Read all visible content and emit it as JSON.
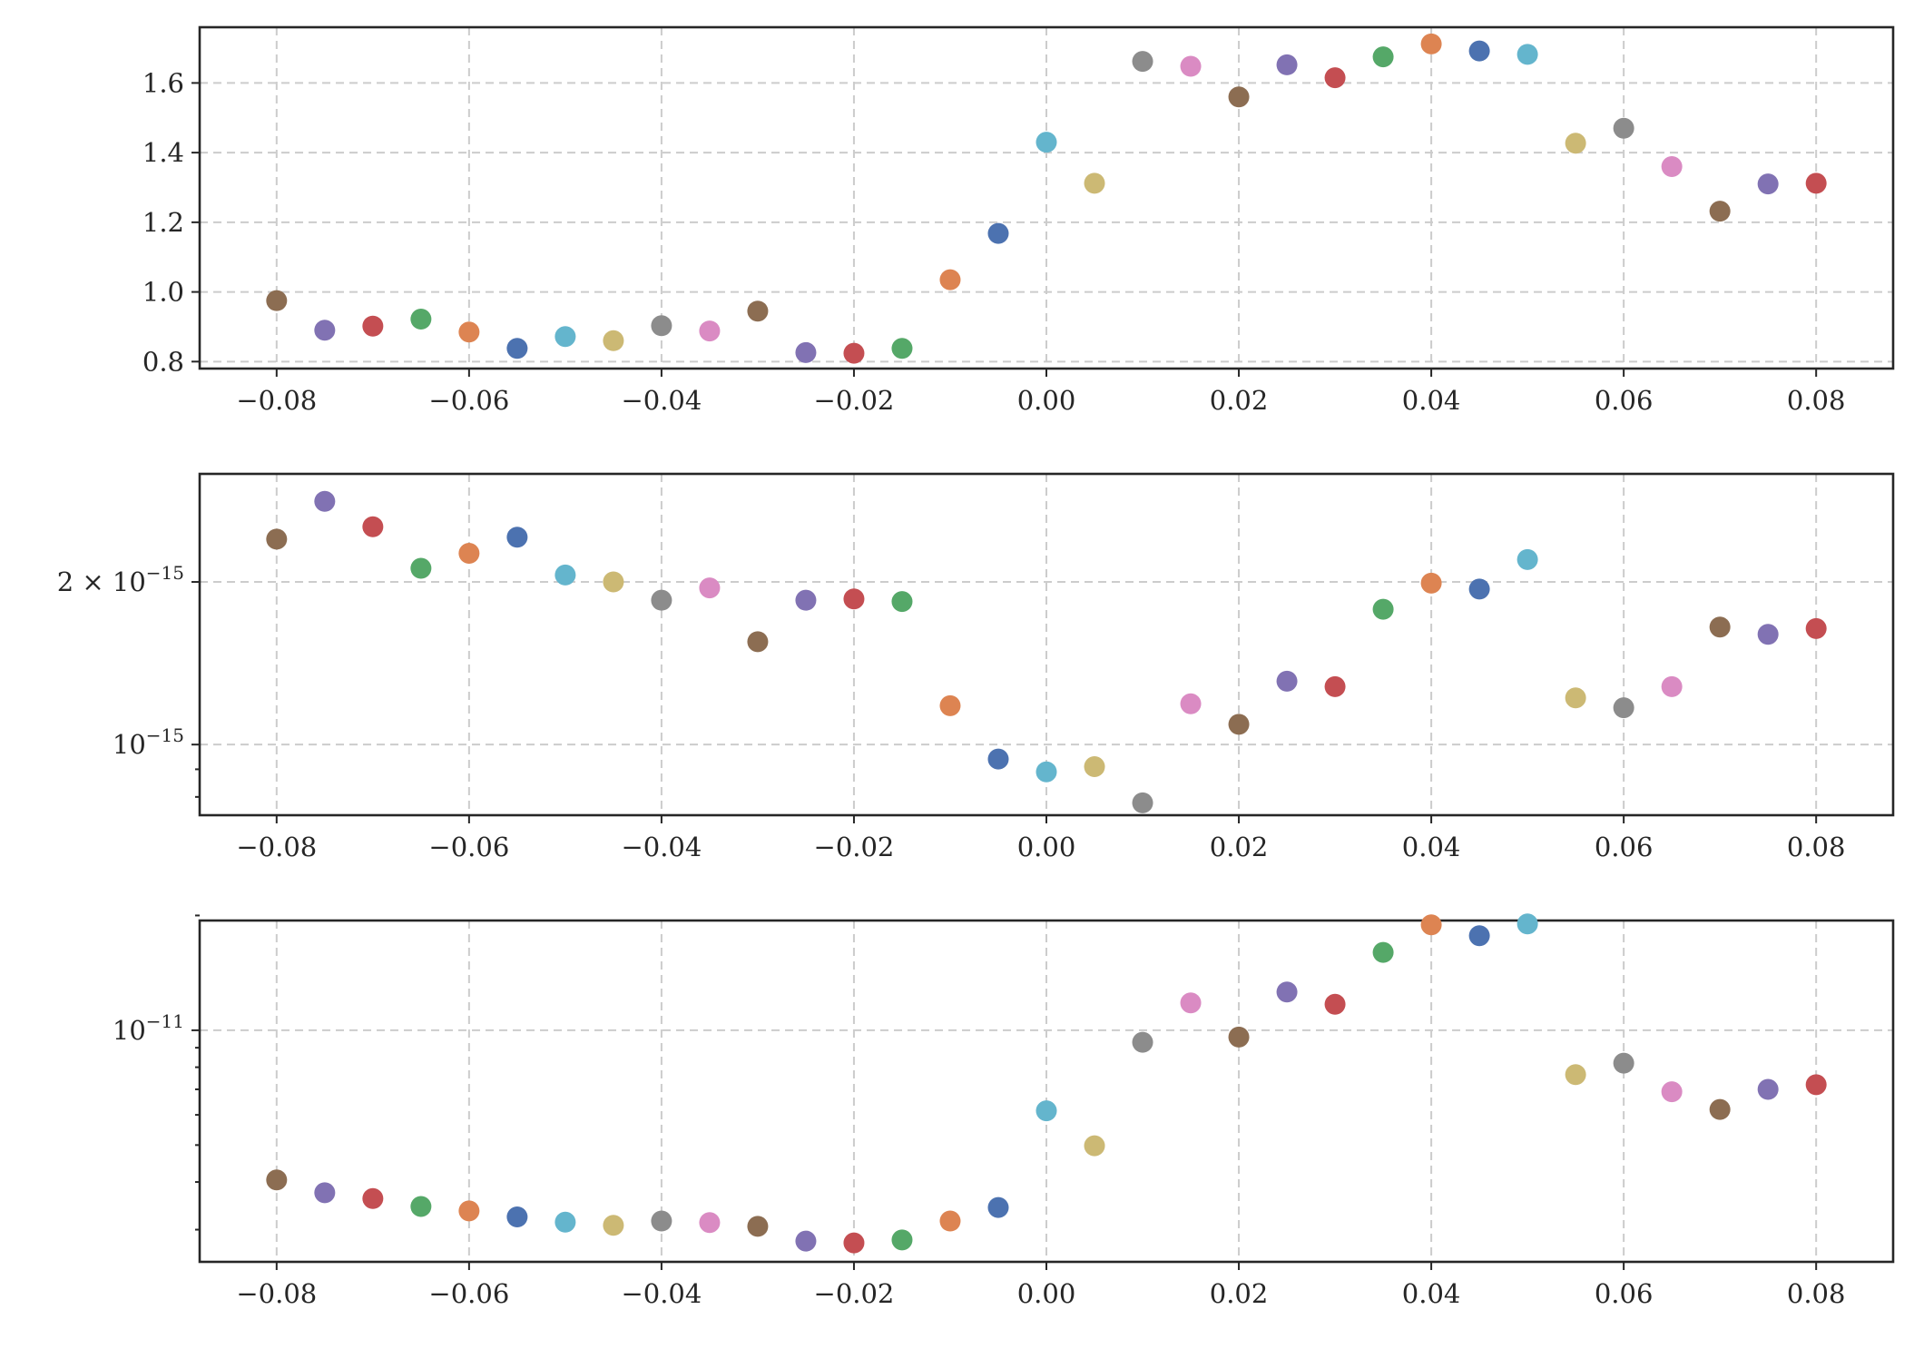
{
  "chart_data": [
    {
      "type": "scatter",
      "yscale": "linear",
      "xlim": [
        -0.088,
        0.088
      ],
      "ylim": [
        0.78,
        1.76
      ],
      "xticks": [
        -0.08,
        -0.06,
        -0.04,
        -0.02,
        0.0,
        0.02,
        0.04,
        0.06,
        0.08
      ],
      "xtick_labels": [
        "−0.08",
        "−0.06",
        "−0.04",
        "−0.02",
        "0.00",
        "0.02",
        "0.04",
        "0.06",
        "0.08"
      ],
      "yticks": [
        0.8,
        1.0,
        1.2,
        1.4,
        1.6
      ],
      "ytick_labels": [
        "0.8",
        "1.0",
        "1.2",
        "1.4",
        "1.6"
      ],
      "grid": true,
      "x": [
        -0.08,
        -0.075,
        -0.07,
        -0.065,
        -0.06,
        -0.055,
        -0.05,
        -0.045,
        -0.04,
        -0.035,
        -0.03,
        -0.025,
        -0.02,
        -0.015,
        -0.01,
        -0.005,
        0.0,
        0.005,
        0.01,
        0.015,
        0.02,
        0.025,
        0.03,
        0.035,
        0.04,
        0.045,
        0.05,
        0.055,
        0.06,
        0.065,
        0.07,
        0.075,
        0.08
      ],
      "y": [
        0.975,
        0.89,
        0.902,
        0.922,
        0.885,
        0.838,
        0.872,
        0.86,
        0.903,
        0.888,
        0.945,
        0.826,
        0.824,
        0.838,
        1.035,
        1.168,
        1.43,
        1.312,
        1.662,
        1.648,
        1.56,
        1.652,
        1.615,
        1.675,
        1.712,
        1.692,
        1.682,
        1.427,
        1.47,
        1.36,
        1.232,
        1.31,
        1.312
      ]
    },
    {
      "type": "scatter",
      "yscale": "log",
      "xlim": [
        -0.088,
        0.088
      ],
      "ylim": [
        7.4e-16,
        3.17e-15
      ],
      "xticks": [
        -0.08,
        -0.06,
        -0.04,
        -0.02,
        0.0,
        0.02,
        0.04,
        0.06,
        0.08
      ],
      "xtick_labels": [
        "−0.08",
        "−0.06",
        "−0.04",
        "−0.02",
        "0.00",
        "0.02",
        "0.04",
        "0.06",
        "0.08"
      ],
      "ytick_major": [
        {
          "value": 2e-15,
          "mantissa": "2 × 10",
          "exponent": "−15"
        },
        {
          "value": 1e-15,
          "mantissa": "10",
          "exponent": "−15"
        }
      ],
      "ytick_minor": [
        9e-16,
        8e-16
      ],
      "grid": true,
      "x": [
        -0.08,
        -0.075,
        -0.07,
        -0.065,
        -0.06,
        -0.055,
        -0.05,
        -0.045,
        -0.04,
        -0.035,
        -0.03,
        -0.025,
        -0.02,
        -0.015,
        -0.01,
        -0.005,
        0.0,
        0.005,
        0.01,
        0.015,
        0.02,
        0.025,
        0.03,
        0.035,
        0.04,
        0.045,
        0.05,
        0.055,
        0.06,
        0.065,
        0.07,
        0.075,
        0.08
      ],
      "y": [
        2.4e-15,
        2.82e-15,
        2.53e-15,
        2.12e-15,
        2.26e-15,
        2.42e-15,
        2.06e-15,
        2e-15,
        1.85e-15,
        1.95e-15,
        1.55e-15,
        1.85e-15,
        1.86e-15,
        1.84e-15,
        1.18e-15,
        9.4e-16,
        8.9e-16,
        9.1e-16,
        7.8e-16,
        1.19e-15,
        1.09e-15,
        1.31e-15,
        1.28e-15,
        1.78e-15,
        1.99e-15,
        1.94e-15,
        2.2e-15,
        1.22e-15,
        1.17e-15,
        1.28e-15,
        1.65e-15,
        1.6e-15,
        1.64e-15
      ]
    },
    {
      "type": "scatter",
      "yscale": "log",
      "xlim": [
        -0.088,
        0.088
      ],
      "ylim": [
        2.47e-12,
        1.94e-11
      ],
      "xticks": [
        -0.08,
        -0.06,
        -0.04,
        -0.02,
        0.0,
        0.02,
        0.04,
        0.06,
        0.08
      ],
      "xtick_labels": [
        "−0.08",
        "−0.06",
        "−0.04",
        "−0.02",
        "0.00",
        "0.02",
        "0.04",
        "0.06",
        "0.08"
      ],
      "ytick_major": [
        {
          "value": 1e-11,
          "mantissa": "10",
          "exponent": "−11"
        }
      ],
      "ytick_minor": [
        3e-12,
        4e-12,
        5e-12,
        6e-12,
        7e-12,
        8e-12,
        9e-12,
        2e-11
      ],
      "grid": true,
      "x": [
        -0.08,
        -0.075,
        -0.07,
        -0.065,
        -0.06,
        -0.055,
        -0.05,
        -0.045,
        -0.04,
        -0.035,
        -0.03,
        -0.025,
        -0.02,
        -0.015,
        -0.01,
        -0.005,
        0.0,
        0.005,
        0.01,
        0.015,
        0.02,
        0.025,
        0.03,
        0.035,
        0.04,
        0.045,
        0.05,
        0.055,
        0.06,
        0.065,
        0.07,
        0.075,
        0.08
      ],
      "y": [
        4.05e-12,
        3.75e-12,
        3.62e-12,
        3.45e-12,
        3.36e-12,
        3.24e-12,
        3.14e-12,
        3.08e-12,
        3.16e-12,
        3.13e-12,
        3.06e-12,
        2.8e-12,
        2.77e-12,
        2.82e-12,
        3.16e-12,
        3.43e-12,
        6.15e-12,
        4.98e-12,
        9.3e-12,
        1.18e-11,
        9.6e-12,
        1.26e-11,
        1.17e-11,
        1.6e-11,
        1.89e-11,
        1.77e-11,
        1.9e-11,
        7.65e-12,
        8.2e-12,
        6.9e-12,
        6.2e-12,
        7e-12,
        7.2e-12
      ]
    }
  ],
  "palette": [
    "#8c6d52",
    "#8172b3",
    "#c44e52",
    "#55a868",
    "#dd8452",
    "#4c72b0",
    "#64b5cd",
    "#ccb974",
    "#8c8c8c",
    "#da8bc3"
  ]
}
